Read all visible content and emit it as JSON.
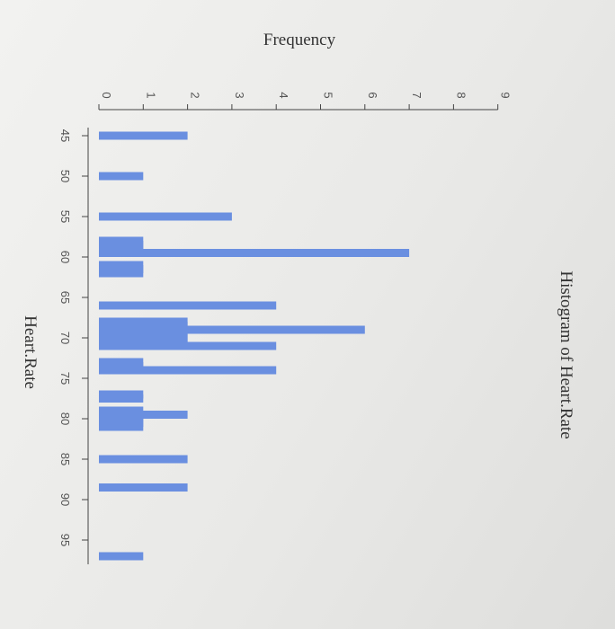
{
  "chart_data": {
    "type": "bar",
    "title": "Histogram of Heart.Rate",
    "xlabel": "Heart.Rate",
    "ylabel": "Frequency",
    "xlim": [
      43,
      98
    ],
    "ylim": [
      0,
      9
    ],
    "x_ticks": [
      45,
      50,
      55,
      60,
      65,
      70,
      75,
      80,
      85,
      90,
      95
    ],
    "y_ticks": [
      0,
      1,
      2,
      3,
      4,
      5,
      6,
      7,
      8,
      9
    ],
    "bar_color": "#6a8fe0",
    "grid": false,
    "bars": [
      {
        "x": 45,
        "count": 2
      },
      {
        "x": 50,
        "count": 1
      },
      {
        "x": 55,
        "count": 3
      },
      {
        "x": 58,
        "count": 1
      },
      {
        "x": 58.5,
        "count": 1
      },
      {
        "x": 59,
        "count": 1
      },
      {
        "x": 59.5,
        "count": 7
      },
      {
        "x": 61,
        "count": 1
      },
      {
        "x": 61.5,
        "count": 1
      },
      {
        "x": 62,
        "count": 1
      },
      {
        "x": 66,
        "count": 4
      },
      {
        "x": 68,
        "count": 2
      },
      {
        "x": 68.5,
        "count": 2
      },
      {
        "x": 69,
        "count": 6
      },
      {
        "x": 69.5,
        "count": 2
      },
      {
        "x": 70,
        "count": 2
      },
      {
        "x": 70.5,
        "count": 2
      },
      {
        "x": 71,
        "count": 4
      },
      {
        "x": 73,
        "count": 1
      },
      {
        "x": 73.5,
        "count": 1
      },
      {
        "x": 74,
        "count": 4
      },
      {
        "x": 77,
        "count": 1
      },
      {
        "x": 77.5,
        "count": 1
      },
      {
        "x": 79,
        "count": 1
      },
      {
        "x": 79.5,
        "count": 2
      },
      {
        "x": 80,
        "count": 1
      },
      {
        "x": 80.5,
        "count": 1
      },
      {
        "x": 81,
        "count": 1
      },
      {
        "x": 85,
        "count": 2
      },
      {
        "x": 88.5,
        "count": 2
      },
      {
        "x": 97,
        "count": 1
      }
    ]
  }
}
